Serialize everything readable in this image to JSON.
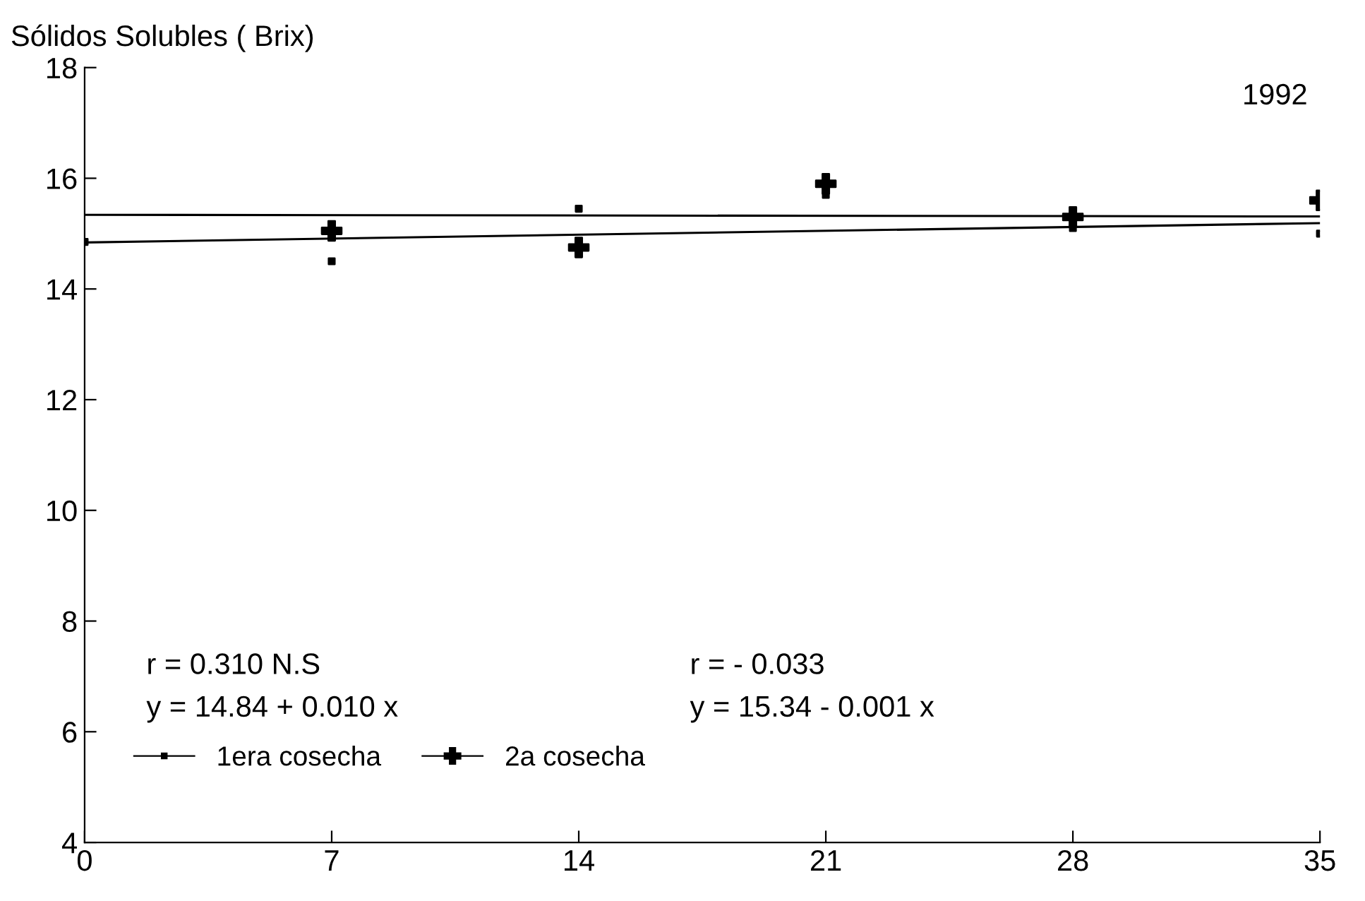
{
  "chart_data": {
    "type": "scatter",
    "ylabel": "Sólidos Solubles ( Brix)",
    "annotations": [
      "1992",
      "r = 0.310 N.S",
      "y = 14.84 + 0.010 x",
      "r = - 0.033",
      "y = 15.34 - 0.001 x"
    ],
    "series": [
      {
        "name": "1era cosecha",
        "color": "#000000",
        "marker": "square",
        "x": [
          0,
          7,
          14,
          21,
          28,
          35
        ],
        "values": [
          14.85,
          14.5,
          15.45,
          15.7,
          15.1,
          15.0
        ]
      },
      {
        "name": "2a cosecha",
        "color": "#000000",
        "marker": "cross",
        "x": [
          7,
          14,
          21,
          28,
          35
        ],
        "values": [
          15.05,
          14.75,
          15.9,
          15.3,
          15.6
        ]
      },
      {
        "type": "line",
        "color": "#000000",
        "x": [
          0,
          35
        ],
        "values": [
          14.84,
          15.19
        ]
      },
      {
        "type": "line",
        "color": "#000000",
        "x": [
          0,
          35
        ],
        "values": [
          15.34,
          15.31
        ]
      }
    ],
    "xlim": [
      0,
      35
    ],
    "xticks": [
      0,
      7,
      14,
      21,
      28,
      35
    ],
    "ylim": [
      4,
      18
    ],
    "yticks": [
      4,
      6,
      8,
      10,
      12,
      14,
      16,
      18
    ],
    "grid": false,
    "legend": "bottom left"
  }
}
